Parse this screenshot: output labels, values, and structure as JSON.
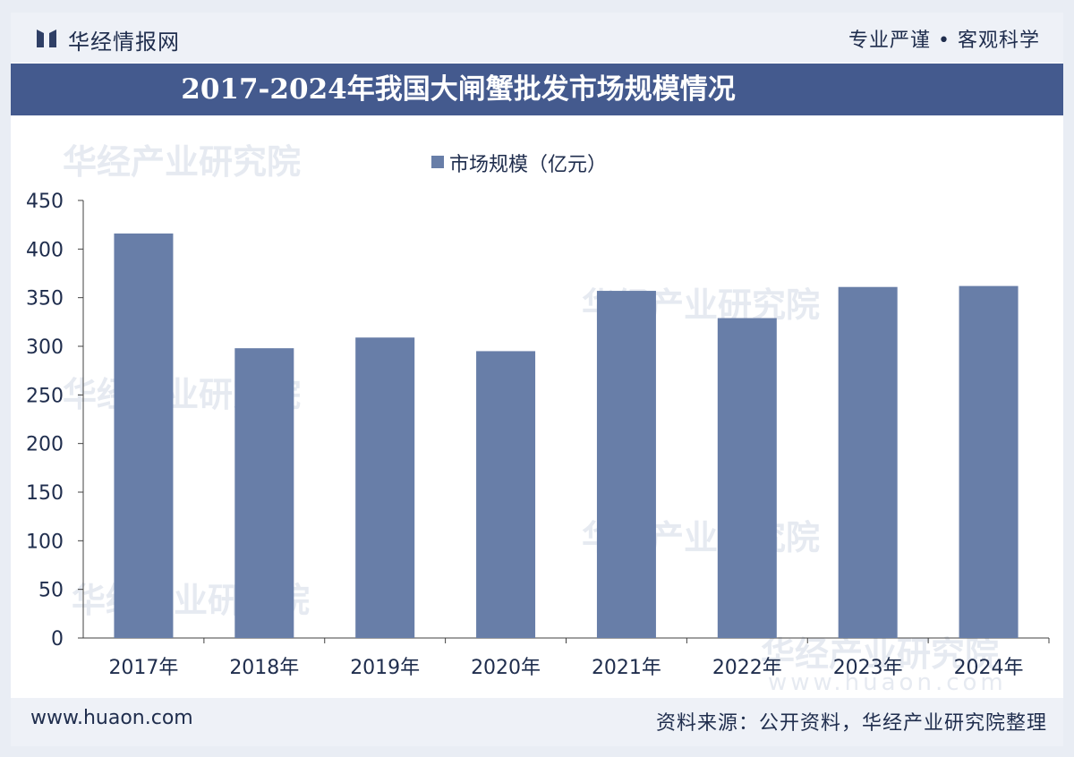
{
  "header": {
    "brand": "华经情报网",
    "slogan": "专业严谨 • 客观科学"
  },
  "watermark": {
    "text": "华经产业研究院",
    "url": "www.huaon.com"
  },
  "colors": {
    "bar": "#687ea8",
    "title_bar": "#445a8e",
    "text": "#1f2d4d"
  },
  "chart_data": {
    "type": "bar",
    "title": "2017-2024年我国大闸蟹批发市场规模情况",
    "categories": [
      "2017年",
      "2018年",
      "2019年",
      "2020年",
      "2021年",
      "2022年",
      "2023年",
      "2024年"
    ],
    "series": [
      {
        "name": "市场规模（亿元）",
        "values": [
          416,
          298,
          309,
          295,
          357,
          329,
          361,
          362
        ]
      }
    ],
    "yticks": [
      0,
      50,
      100,
      150,
      200,
      250,
      300,
      350,
      400,
      450
    ],
    "ylim": [
      0,
      450
    ],
    "xlabel": "",
    "ylabel": "",
    "legend": "top-center",
    "grid": false
  },
  "footer": {
    "website": "www.huaon.com",
    "source": "资料来源：公开资料，华经产业研究院整理"
  }
}
